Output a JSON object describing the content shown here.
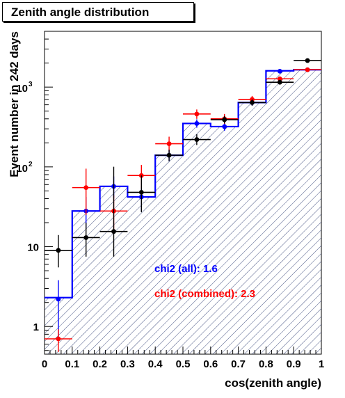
{
  "chart_data": {
    "type": "histogram",
    "title": "Zenith angle distribution",
    "xlabel": "cos(zenith angle)",
    "ylabel": "Event number in 242 days",
    "xlim": [
      0,
      1
    ],
    "ylim": [
      0.45,
      5000
    ],
    "y_scale": "log",
    "grid": false,
    "x_ticks": [
      "0",
      "0.1",
      "0.2",
      "0.3",
      "0.4",
      "0.5",
      "0.6",
      "0.7",
      "0.8",
      "0.9",
      "1"
    ],
    "y_ticks": [
      {
        "value": 1,
        "label": "1"
      },
      {
        "value": 10,
        "label": "10"
      },
      {
        "value": 100,
        "label": "10",
        "exponent": "2"
      },
      {
        "value": 1000,
        "label": "10",
        "exponent": "3"
      }
    ],
    "bin_edges": [
      0,
      0.1,
      0.2,
      0.3,
      0.4,
      0.5,
      0.6,
      0.7,
      0.8,
      0.9,
      1.0
    ],
    "histogram": {
      "color": "#0000ff",
      "fill": "hatched",
      "values": [
        2.3,
        28,
        57,
        42,
        140,
        350,
        320,
        640,
        1600,
        1650
      ]
    },
    "series": [
      {
        "color": "#0000ff",
        "x": [
          0.05,
          0.15,
          0.25,
          0.35,
          0.45,
          0.55,
          0.65,
          0.75,
          0.85,
          0.95
        ],
        "y": [
          2.2,
          28,
          57,
          42,
          140,
          350,
          320,
          640,
          1580,
          1650
        ],
        "y_err": [
          [
            1.5,
            1.6
          ],
          [
            11,
            14
          ],
          [
            16,
            19
          ],
          [
            14,
            16
          ],
          [
            22,
            24
          ],
          [
            40,
            44
          ],
          [
            36,
            40
          ],
          [
            55,
            60
          ],
          [
            80,
            85
          ],
          [
            90,
            95
          ]
        ]
      },
      {
        "color": "#ff0000",
        "x": [
          0.05,
          0.15,
          0.25,
          0.35,
          0.45,
          0.55,
          0.65,
          0.75,
          0.85,
          0.95
        ],
        "x_err": [
          0.05,
          0.05,
          0.05,
          0.05,
          0.05,
          0.05,
          0.05,
          0.05,
          0.05,
          0.05
        ],
        "y": [
          0.7,
          55,
          28,
          78,
          195,
          460,
          400,
          700,
          1270,
          1650
        ],
        "y_err": [
          [
            0.22,
            0.22
          ],
          [
            30,
            40
          ],
          [
            12,
            16
          ],
          [
            24,
            28
          ],
          [
            40,
            44
          ],
          [
            60,
            64
          ],
          [
            55,
            60
          ],
          [
            70,
            75
          ],
          [
            80,
            85
          ],
          [
            90,
            95
          ]
        ]
      },
      {
        "color": "#000000",
        "x": [
          0.05,
          0.15,
          0.25,
          0.35,
          0.45,
          0.55,
          0.65,
          0.75,
          0.85,
          0.95
        ],
        "x_err": [
          0.05,
          0.05,
          0.05,
          0.05,
          0.05,
          0.05,
          0.05,
          0.05,
          0.05,
          0.05
        ],
        "y": [
          9,
          13,
          15.5,
          48,
          140,
          220,
          390,
          640,
          1150,
          2150
        ],
        "y_err": [
          [
            3.5,
            5
          ],
          [
            5.5,
            7
          ],
          [
            8,
            85
          ],
          [
            21,
            30
          ],
          [
            22,
            24
          ],
          [
            32,
            36
          ],
          [
            40,
            45
          ],
          [
            55,
            60
          ],
          [
            70,
            75
          ],
          [
            100,
            110
          ]
        ]
      }
    ],
    "annotations": [
      {
        "text": "chi2 (all): 1.6",
        "color": "#0000ff"
      },
      {
        "text": "chi2 (combined): 2.3",
        "color": "#ff0000"
      }
    ]
  }
}
